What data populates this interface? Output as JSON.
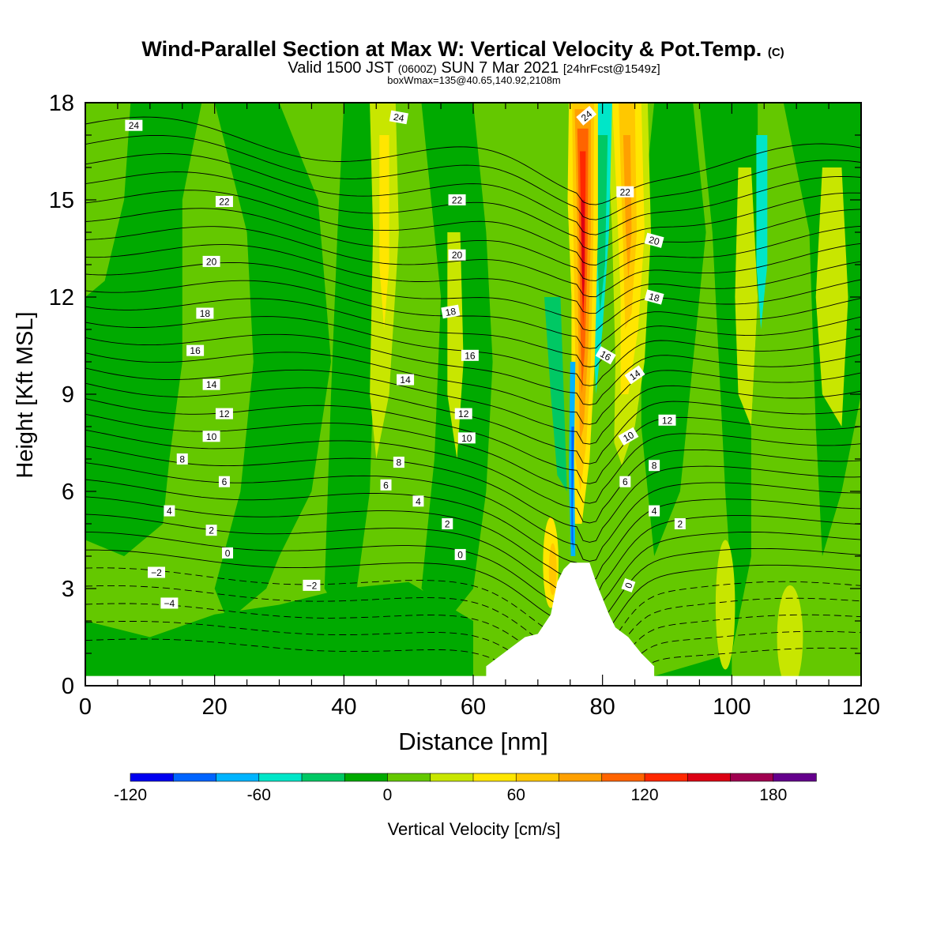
{
  "chart_data": {
    "type": "heatmap",
    "title": "Wind-Parallel Section at Max W: Vertical Velocity & Pot.Temp.",
    "title_mark": "(C)",
    "subtitle_prefix": "Valid 1500 JST",
    "subtitle_utc": "(0600Z)",
    "subtitle_date": "SUN 7 Mar 2021",
    "subtitle_fcst": "[24hrFcst@1549z]",
    "subtitle2": "boxWmax=135@40.65,140.92,2108m",
    "xlabel": "Distance [nm]",
    "ylabel": "Height [Kft MSL]",
    "xlim": [
      0,
      120
    ],
    "ylim": [
      0,
      18
    ],
    "x_ticks": [
      "0",
      "20",
      "40",
      "60",
      "80",
      "100",
      "120"
    ],
    "y_ticks": [
      "0",
      "3",
      "6",
      "9",
      "12",
      "15",
      "18"
    ],
    "colorbar": {
      "label": "Vertical Velocity [cm/s]",
      "range": [
        -120,
        200
      ],
      "tick_values": [
        -120,
        -60,
        0,
        60,
        120,
        180
      ],
      "tick_labels": [
        "-120",
        "-60",
        "0",
        "60",
        "120",
        "180"
      ],
      "colors": [
        "#0000f0",
        "#0064ff",
        "#00b4ff",
        "#00e6c8",
        "#00c864",
        "#00aa00",
        "#64c800",
        "#c8e600",
        "#ffe600",
        "#ffc800",
        "#ffa000",
        "#ff6400",
        "#ff2800",
        "#dc0014",
        "#a00050",
        "#64008c"
      ]
    },
    "colors": {
      "background_field": "#64c800",
      "weak_sink": "#00aa00",
      "terrain": "#ffffff"
    },
    "updraft_core": {
      "x": 76.5,
      "label_value": 135,
      "height_kft": 6.9
    },
    "terrain_profile": {
      "x": [
        62,
        64,
        66,
        68,
        70,
        72,
        73,
        74,
        75,
        78,
        79,
        80,
        81,
        82,
        84,
        86,
        88
      ],
      "height_kft": [
        0.6,
        0.9,
        1.2,
        1.5,
        1.6,
        2.2,
        3.2,
        3.6,
        3.8,
        3.8,
        3.2,
        2.7,
        2.2,
        1.8,
        1.5,
        1.0,
        0.6
      ]
    },
    "theta_contours": {
      "label_values": [
        "-4",
        "-2",
        "-2",
        "0",
        "0",
        "0",
        "2",
        "2",
        "2",
        "4",
        "4",
        "4",
        "6",
        "6",
        "6",
        "8",
        "8",
        "8",
        "10",
        "10",
        "10",
        "12",
        "12",
        "12",
        "14",
        "14",
        "14",
        "16",
        "16",
        "16",
        "18",
        "18",
        "18",
        "20",
        "20",
        "20",
        "22",
        "22",
        "22",
        "24",
        "24",
        "24"
      ]
    }
  }
}
